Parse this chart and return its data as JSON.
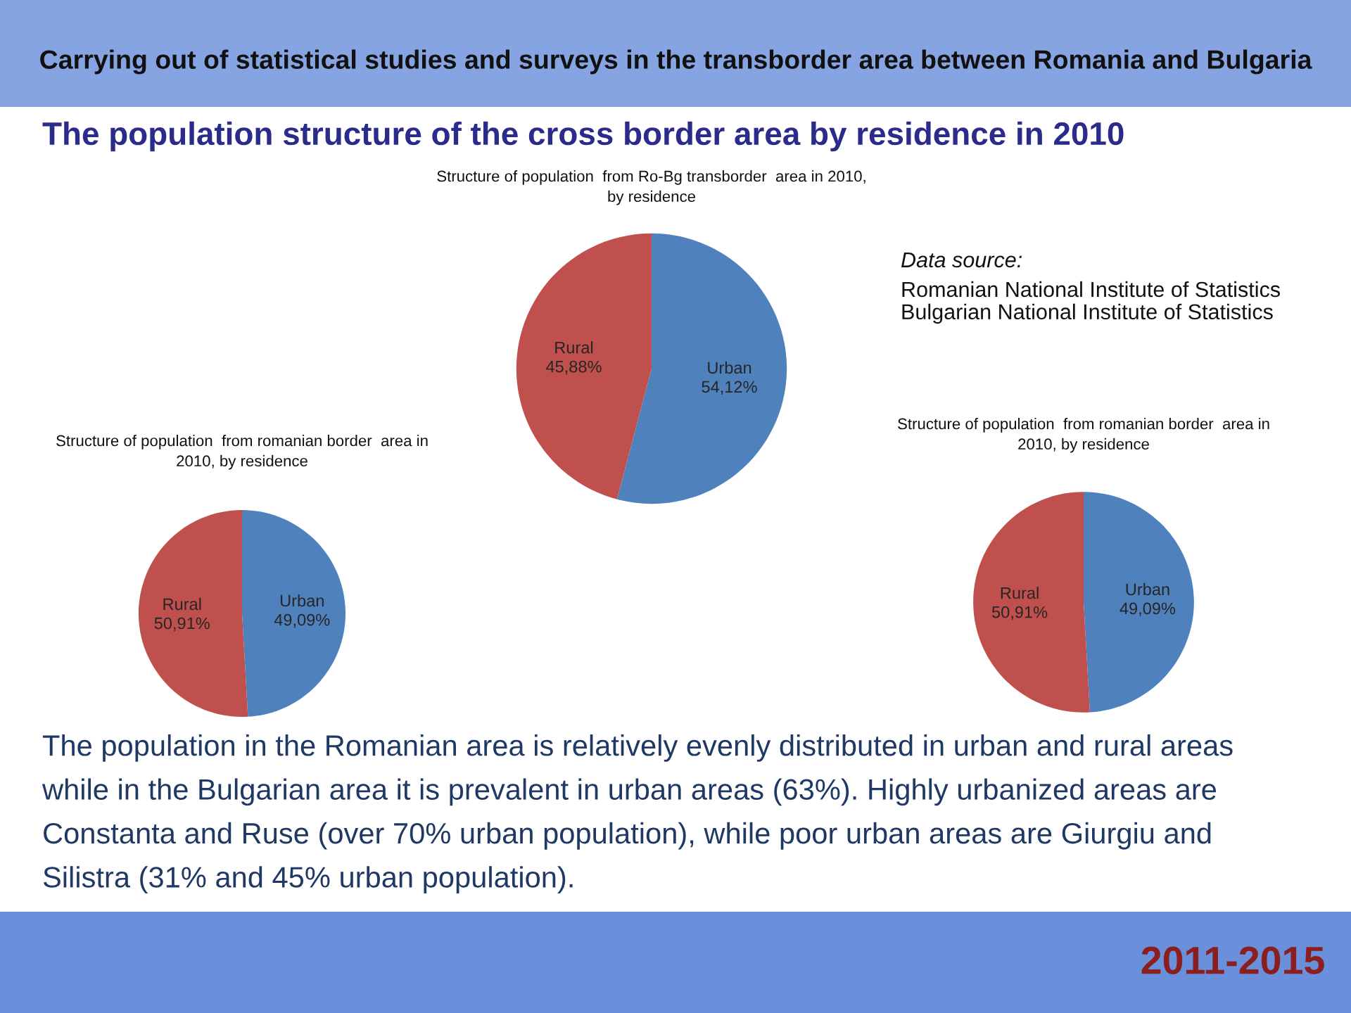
{
  "chart_data": [
    {
      "type": "other",
      "title": "Carrying out of statistical studies and surveys in the transborder area between Romania and Bulgaria",
      "subtitle": "The population structure of the cross border area by residence in 2010",
      "annotations": [
        "Data source:",
        "Romanian National Institute of Statistics\nBulgarian National Institute of Statistics",
        "The population in the Romanian area is relatively evenly distributed in urban and rural areas while in the Bulgarian area it is prevalent in urban areas (63%). Highly urbanized areas are Constanta and Ruse (over 70% urban population), while poor urban areas are Giurgiu and Silistra (31% and 45% urban population).",
        "2011-2015"
      ]
    },
    {
      "type": "pie",
      "title": "Structure of population  from Ro-Bg transborder  area in 2010,\nby residence",
      "categories": [
        "Urban",
        "Rural"
      ],
      "values": [
        54.12,
        45.88
      ],
      "colors": [
        "#4f81bd",
        "#c0504d"
      ],
      "value_labels": [
        "54,12%",
        "45,88%"
      ]
    },
    {
      "type": "pie",
      "title": "Structure of population  from romanian border  area in\n2010, by residence",
      "categories": [
        "Urban",
        "Rural"
      ],
      "values": [
        49.09,
        50.91
      ],
      "colors": [
        "#4f81bd",
        "#c0504d"
      ],
      "value_labels": [
        "49,09%",
        "50,91%"
      ]
    },
    {
      "type": "pie",
      "title": "Structure of population  from romanian border  area in\n2010, by residence",
      "categories": [
        "Urban",
        "Rural"
      ],
      "values": [
        49.09,
        50.91
      ],
      "colors": [
        "#4f81bd",
        "#c0504d"
      ],
      "value_labels": [
        "49,09%",
        "50,91%"
      ]
    }
  ]
}
